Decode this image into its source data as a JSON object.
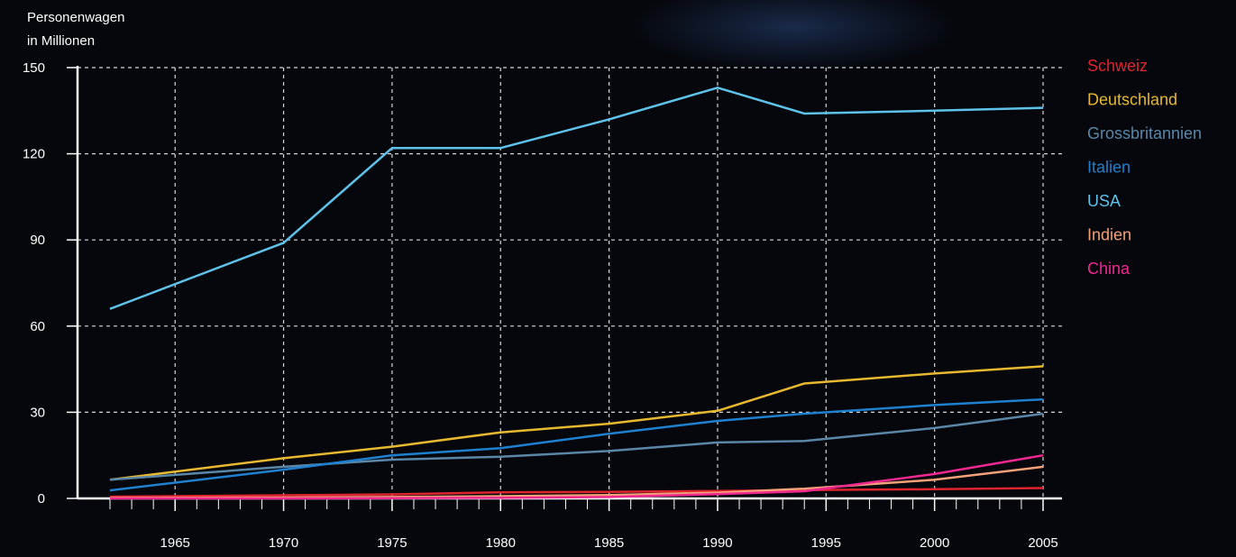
{
  "chart_data": {
    "type": "line",
    "ylabel_line1": "Personenwagen",
    "ylabel_line2": "in Millionen",
    "ylim": [
      0,
      150
    ],
    "yticks": [
      0,
      30,
      60,
      90,
      120,
      150
    ],
    "xlim": [
      1962,
      2005
    ],
    "xticks": [
      1965,
      1970,
      1975,
      1980,
      1985,
      1990,
      1995,
      2000,
      2005
    ],
    "grid": true,
    "legend_position": "right",
    "x": [
      1962,
      1970,
      1975,
      1980,
      1985,
      1990,
      1994,
      2000,
      2005
    ],
    "series": [
      {
        "name": "Schweiz",
        "color": "#e0242e",
        "values": [
          0.6,
          1.1,
          1.4,
          2.1,
          2.3,
          2.6,
          2.9,
          3.2,
          3.6
        ]
      },
      {
        "name": "Deutschland",
        "color": "#e8b830",
        "values": [
          6.5,
          14,
          18,
          23,
          26,
          30.5,
          40,
          43.5,
          46
        ]
      },
      {
        "name": "Grossbritannien",
        "color": "#5a87a8",
        "values": [
          6.5,
          11,
          13.5,
          14.5,
          16.5,
          19.5,
          20,
          24.5,
          29.5
        ]
      },
      {
        "name": "Italien",
        "color": "#1f80d0",
        "values": [
          2.8,
          10,
          15,
          17.5,
          22.5,
          27,
          29.5,
          32.5,
          34.5
        ]
      },
      {
        "name": "USA",
        "color": "#5fc2ea",
        "values": [
          66,
          89,
          122,
          122,
          132,
          143,
          134,
          135,
          136
        ]
      },
      {
        "name": "Indien",
        "color": "#f4a078",
        "values": [
          0.2,
          0.3,
          0.5,
          0.8,
          1.2,
          2,
          3.4,
          6.5,
          11
        ]
      },
      {
        "name": "China",
        "color": "#f02890",
        "values": [
          0,
          0,
          0.1,
          0.2,
          0.5,
          1.5,
          2.5,
          8.5,
          15
        ]
      }
    ]
  }
}
